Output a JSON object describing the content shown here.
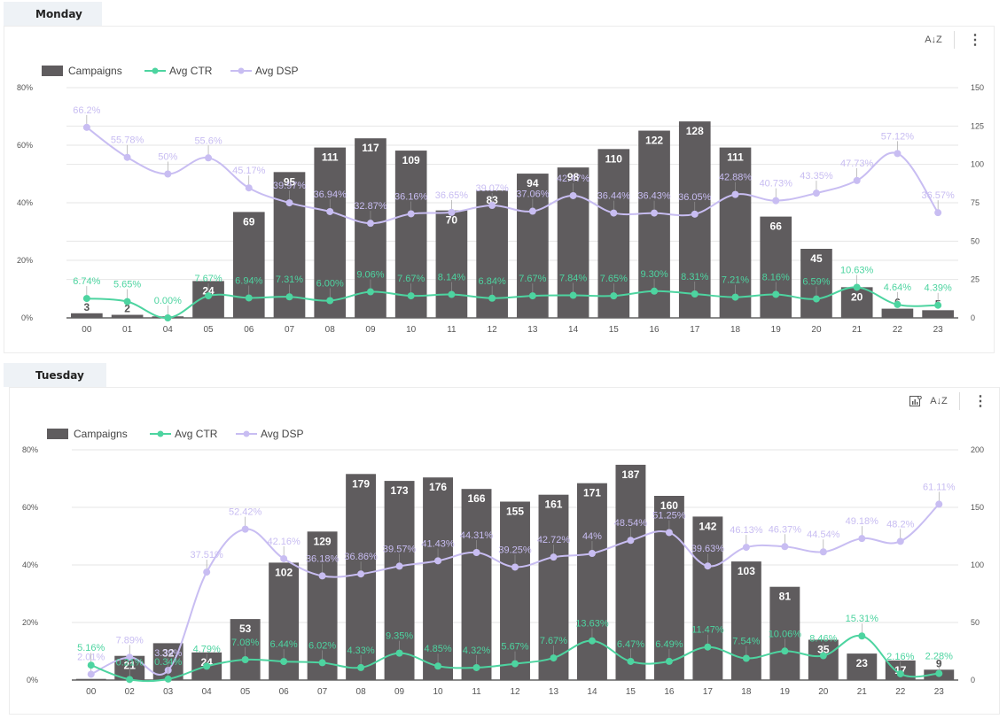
{
  "colors": {
    "bar": "#5f5c5e",
    "ctr": "#4dd4a0",
    "dsp": "#c8bdf2",
    "grid": "#e6e6e6",
    "axis_text": "#555555",
    "tab_bg": "#eef2f6"
  },
  "toolbar": {
    "sort_icon": "A↓Z",
    "more_icon": "⋮",
    "chart_settings_icon": "chart-settings"
  },
  "panels": [
    {
      "tab_label": "Monday",
      "legend": [
        "Campaigns",
        "Avg CTR",
        "Avg DSP"
      ]
    },
    {
      "tab_label": "Tuesday",
      "legend": [
        "Campaigns",
        "Avg CTR",
        "Avg DSP"
      ]
    }
  ],
  "chart_data": [
    {
      "type": "bar",
      "title": "Monday",
      "categories": [
        "00",
        "01",
        "04",
        "05",
        "06",
        "07",
        "08",
        "09",
        "10",
        "11",
        "12",
        "13",
        "14",
        "15",
        "16",
        "17",
        "18",
        "19",
        "20",
        "21",
        "22",
        "23"
      ],
      "series": [
        {
          "name": "Campaigns",
          "type": "bar",
          "axis": "right",
          "values": [
            3,
            2,
            1,
            24,
            69,
            95,
            111,
            117,
            109,
            70,
            83,
            94,
            98,
            110,
            122,
            128,
            111,
            66,
            45,
            20,
            6,
            5
          ],
          "labels": [
            "3",
            "2",
            "",
            "24",
            "69",
            "95",
            "111",
            "117",
            "109",
            "70",
            "83",
            "94",
            "98",
            "110",
            "122",
            "128",
            "111",
            "66",
            "45",
            "20",
            "6",
            "5"
          ]
        },
        {
          "name": "Avg CTR",
          "type": "line",
          "axis": "left",
          "values": [
            6.74,
            5.65,
            0.0,
            7.67,
            6.94,
            7.31,
            6.0,
            9.06,
            7.67,
            8.14,
            6.84,
            7.67,
            7.84,
            7.65,
            9.3,
            8.31,
            7.21,
            8.16,
            6.59,
            10.63,
            4.64,
            4.39
          ],
          "labels": [
            "6.74%",
            "5.65%",
            "0.00%",
            "7.67%",
            "6.94%",
            "7.31%",
            "6.00%",
            "9.06%",
            "7.67%",
            "8.14%",
            "6.84%",
            "7.67%",
            "7.84%",
            "7.65%",
            "9.30%",
            "8.31%",
            "7.21%",
            "8.16%",
            "6.59%",
            "10.63%",
            "4.64%",
            "4.39%"
          ]
        },
        {
          "name": "Avg DSP",
          "type": "line",
          "axis": "left",
          "values": [
            66.2,
            55.78,
            50,
            55.6,
            45.17,
            39.97,
            36.94,
            32.87,
            36.16,
            36.65,
            39.07,
            37.06,
            42.47,
            36.44,
            36.43,
            36.05,
            42.88,
            40.73,
            43.35,
            47.73,
            57.12,
            36.57
          ],
          "labels": [
            "66.2%",
            "55.78%",
            "50%",
            "55.6%",
            "45.17%",
            "39.97%",
            "36.94%",
            "32.87%",
            "36.16%",
            "36.65%",
            "39.07%",
            "37.06%",
            "42.47%",
            "36.44%",
            "36.43%",
            "36.05%",
            "42.88%",
            "40.73%",
            "43.35%",
            "47.73%",
            "57.12%",
            "36.57%"
          ]
        }
      ],
      "left_axis": {
        "ticks": [
          "0%",
          "20%",
          "40%",
          "60%",
          "80%"
        ],
        "range": [
          0,
          80
        ]
      },
      "right_axis": {
        "ticks": [
          "0",
          "25",
          "50",
          "75",
          "100",
          "125",
          "150"
        ],
        "range": [
          0,
          150
        ]
      },
      "grid": true,
      "legend_position": "top-left"
    },
    {
      "type": "bar",
      "title": "Tuesday",
      "categories": [
        "00",
        "02",
        "03",
        "04",
        "05",
        "06",
        "07",
        "08",
        "09",
        "10",
        "11",
        "12",
        "13",
        "14",
        "15",
        "16",
        "17",
        "18",
        "19",
        "20",
        "21",
        "22",
        "23"
      ],
      "series": [
        {
          "name": "Campaigns",
          "type": "bar",
          "axis": "right",
          "values": [
            1,
            21,
            32,
            24,
            53,
            102,
            129,
            179,
            173,
            176,
            166,
            155,
            161,
            171,
            187,
            160,
            142,
            103,
            81,
            35,
            23,
            17,
            9
          ],
          "labels": [
            "",
            "21",
            "32",
            "24",
            "53",
            "102",
            "129",
            "179",
            "173",
            "176",
            "166",
            "155",
            "161",
            "171",
            "187",
            "160",
            "142",
            "103",
            "81",
            "35",
            "23",
            "17",
            "9"
          ]
        },
        {
          "name": "Avg CTR",
          "type": "line",
          "axis": "left",
          "values": [
            5.16,
            0.21,
            0.34,
            4.79,
            7.08,
            6.44,
            6.02,
            4.33,
            9.35,
            4.85,
            4.32,
            5.67,
            7.67,
            13.63,
            6.47,
            6.49,
            11.47,
            7.54,
            10.06,
            8.46,
            15.31,
            2.16,
            2.28
          ],
          "labels": [
            "5.16%",
            "0.21%",
            "0.34%",
            "4.79%",
            "7.08%",
            "6.44%",
            "6.02%",
            "4.33%",
            "9.35%",
            "4.85%",
            "4.32%",
            "5.67%",
            "7.67%",
            "13.63%",
            "6.47%",
            "6.49%",
            "11.47%",
            "7.54%",
            "10.06%",
            "8.46%",
            "15.31%",
            "2.16%",
            "2.28%"
          ]
        },
        {
          "name": "Avg DSP",
          "type": "line",
          "axis": "left",
          "values": [
            2.01,
            7.89,
            3.39,
            37.51,
            52.42,
            42.16,
            36.18,
            36.86,
            39.57,
            41.43,
            44.31,
            39.25,
            42.72,
            44,
            48.54,
            51.25,
            39.63,
            46.13,
            46.37,
            44.54,
            49.18,
            48.2,
            61.11
          ],
          "labels": [
            "2.01%",
            "7.89%",
            "3.39%",
            "37.51%",
            "52.42%",
            "42.16%",
            "36.18%",
            "36.86%",
            "39.57%",
            "41.43%",
            "44.31%",
            "39.25%",
            "42.72%",
            "44%",
            "48.54%",
            "51.25%",
            "39.63%",
            "46.13%",
            "46.37%",
            "44.54%",
            "49.18%",
            "48.2%",
            "61.11%"
          ]
        }
      ],
      "left_axis": {
        "ticks": [
          "0%",
          "20%",
          "40%",
          "60%",
          "80%"
        ],
        "range": [
          0,
          80
        ]
      },
      "right_axis": {
        "ticks": [
          "0",
          "50",
          "100",
          "150",
          "200"
        ],
        "range": [
          0,
          200
        ]
      },
      "grid": true,
      "legend_position": "top-left"
    }
  ]
}
